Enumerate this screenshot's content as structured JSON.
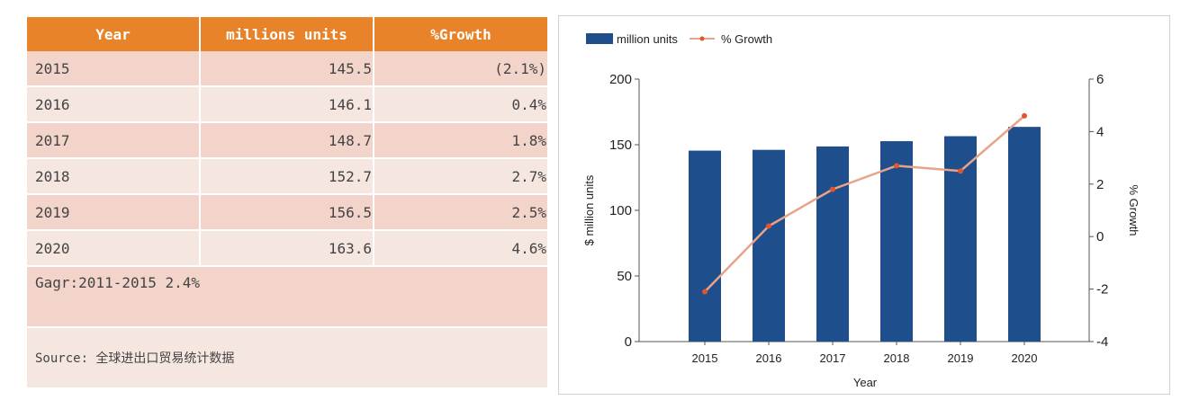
{
  "table": {
    "headers": [
      "Year",
      "millions units",
      "%Growth"
    ],
    "rows": [
      {
        "year": "2015",
        "units": "145.5",
        "growth": "(2.1%)"
      },
      {
        "year": "2016",
        "units": "146.1",
        "growth": "0.4%"
      },
      {
        "year": "2017",
        "units": "148.7",
        "growth": "1.8%"
      },
      {
        "year": "2018",
        "units": "152.7",
        "growth": "2.7%"
      },
      {
        "year": "2019",
        "units": "156.5",
        "growth": "2.5%"
      },
      {
        "year": "2020",
        "units": "163.6",
        "growth": "4.6%"
      }
    ],
    "cagr": "Gagr:2011-2015  2.4%",
    "source": "Source: 全球进出口贸易统计数据"
  },
  "chart_data": {
    "type": "bar",
    "categories": [
      "2015",
      "2016",
      "2017",
      "2018",
      "2019",
      "2020"
    ],
    "series": [
      {
        "name": "million units",
        "type": "bar",
        "axis": "left",
        "color": "#1f4e8c",
        "values": [
          145.5,
          146.1,
          148.7,
          152.7,
          156.5,
          163.6
        ]
      },
      {
        "name": "% Growth",
        "type": "line",
        "axis": "right",
        "color": "#e8a48a",
        "values": [
          -2.1,
          0.4,
          1.8,
          2.7,
          2.5,
          4.6
        ]
      }
    ],
    "xlabel": "Year",
    "ylabel": "$ million units",
    "y2label": "% Growth",
    "ylim": [
      0,
      200
    ],
    "y2lim": [
      -4,
      6
    ],
    "yticks": [
      "0",
      "50",
      "100",
      "150",
      "200"
    ],
    "y2ticks": [
      "-4",
      "-2",
      "0",
      "2",
      "4",
      "6"
    ],
    "grid": false,
    "legend": "top-left"
  }
}
